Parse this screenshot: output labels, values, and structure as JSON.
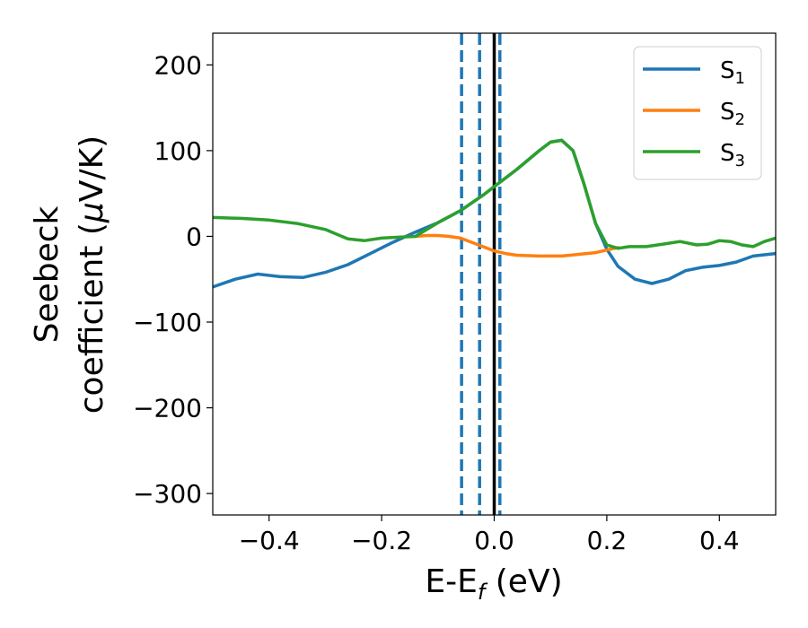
{
  "chart_data": {
    "type": "line",
    "xlabel": {
      "main": "E-E",
      "sub": "f",
      "tail": " (eV)"
    },
    "ylabel": {
      "line1": "Seebeck",
      "line2_pre": "coefficient  (",
      "line2_mu": "μ",
      "line2_post": "V/K)"
    },
    "xlim": [
      -0.5,
      0.5
    ],
    "ylim": [
      -325,
      237
    ],
    "x_ticks": [
      -0.4,
      -0.2,
      0.0,
      0.2,
      0.4
    ],
    "x_tick_labels": [
      "−0.4",
      "−0.2",
      "0.0",
      "0.2",
      "0.4"
    ],
    "y_ticks": [
      200,
      100,
      0,
      -100,
      -200,
      -300
    ],
    "y_tick_labels": [
      "200",
      "100",
      "0",
      "−100",
      "−200",
      "−300"
    ],
    "grid": false,
    "legend_position": "top-right",
    "vertical_lines": [
      {
        "x": -0.058,
        "style": "dashed",
        "color": "#1f77b4"
      },
      {
        "x": -0.026,
        "style": "dashed",
        "color": "#1f77b4"
      },
      {
        "x": 0.01,
        "style": "dashed",
        "color": "#1f77b4"
      },
      {
        "x": 0.0,
        "style": "solid",
        "color": "#000000"
      }
    ],
    "series": [
      {
        "name": {
          "main": "S",
          "sub": "1"
        },
        "color": "#1f77b4",
        "points": [
          [
            -0.5,
            -59
          ],
          [
            -0.46,
            -50
          ],
          [
            -0.42,
            -44
          ],
          [
            -0.38,
            -47
          ],
          [
            -0.34,
            -48
          ],
          [
            -0.3,
            -42
          ],
          [
            -0.26,
            -33
          ],
          [
            -0.22,
            -20
          ],
          [
            -0.18,
            -7
          ],
          [
            -0.14,
            5
          ],
          [
            -0.1,
            16
          ],
          [
            -0.06,
            30
          ],
          [
            -0.02,
            48
          ],
          [
            0.0,
            58
          ],
          [
            0.04,
            78
          ],
          [
            0.08,
            100
          ],
          [
            0.1,
            110
          ],
          [
            0.12,
            112
          ],
          [
            0.14,
            100
          ],
          [
            0.16,
            60
          ],
          [
            0.18,
            15
          ],
          [
            0.2,
            -15
          ],
          [
            0.22,
            -35
          ],
          [
            0.25,
            -50
          ],
          [
            0.28,
            -55
          ],
          [
            0.31,
            -50
          ],
          [
            0.34,
            -40
          ],
          [
            0.37,
            -36
          ],
          [
            0.4,
            -34
          ],
          [
            0.43,
            -30
          ],
          [
            0.46,
            -23
          ],
          [
            0.5,
            -20
          ]
        ]
      },
      {
        "name": {
          "main": "S",
          "sub": "2"
        },
        "color": "#ff7f0e",
        "points": [
          [
            -0.14,
            0
          ],
          [
            -0.12,
            1
          ],
          [
            -0.1,
            1
          ],
          [
            -0.08,
            0
          ],
          [
            -0.06,
            -2
          ],
          [
            -0.04,
            -7
          ],
          [
            -0.02,
            -12
          ],
          [
            0.0,
            -17
          ],
          [
            0.02,
            -20
          ],
          [
            0.04,
            -22
          ],
          [
            0.08,
            -23
          ],
          [
            0.12,
            -23
          ],
          [
            0.15,
            -21
          ],
          [
            0.18,
            -19
          ],
          [
            0.2,
            -16
          ],
          [
            0.22,
            -13
          ]
        ]
      },
      {
        "name": {
          "main": "S",
          "sub": "3"
        },
        "color": "#2ca02c",
        "points": [
          [
            -0.5,
            22
          ],
          [
            -0.45,
            21
          ],
          [
            -0.4,
            19
          ],
          [
            -0.35,
            15
          ],
          [
            -0.3,
            8
          ],
          [
            -0.26,
            -3
          ],
          [
            -0.23,
            -5
          ],
          [
            -0.2,
            -2
          ],
          [
            -0.17,
            -1
          ],
          [
            -0.14,
            0
          ],
          [
            -0.1,
            16
          ],
          [
            -0.06,
            30
          ],
          [
            -0.02,
            48
          ],
          [
            0.0,
            58
          ],
          [
            0.04,
            78
          ],
          [
            0.08,
            100
          ],
          [
            0.1,
            110
          ],
          [
            0.12,
            112
          ],
          [
            0.14,
            100
          ],
          [
            0.16,
            60
          ],
          [
            0.18,
            15
          ],
          [
            0.2,
            -10
          ],
          [
            0.22,
            -14
          ],
          [
            0.24,
            -12
          ],
          [
            0.27,
            -12
          ],
          [
            0.3,
            -9
          ],
          [
            0.33,
            -6
          ],
          [
            0.36,
            -10
          ],
          [
            0.38,
            -9
          ],
          [
            0.4,
            -5
          ],
          [
            0.42,
            -6
          ],
          [
            0.44,
            -10
          ],
          [
            0.46,
            -12
          ],
          [
            0.48,
            -6
          ],
          [
            0.5,
            -2
          ]
        ]
      }
    ]
  }
}
